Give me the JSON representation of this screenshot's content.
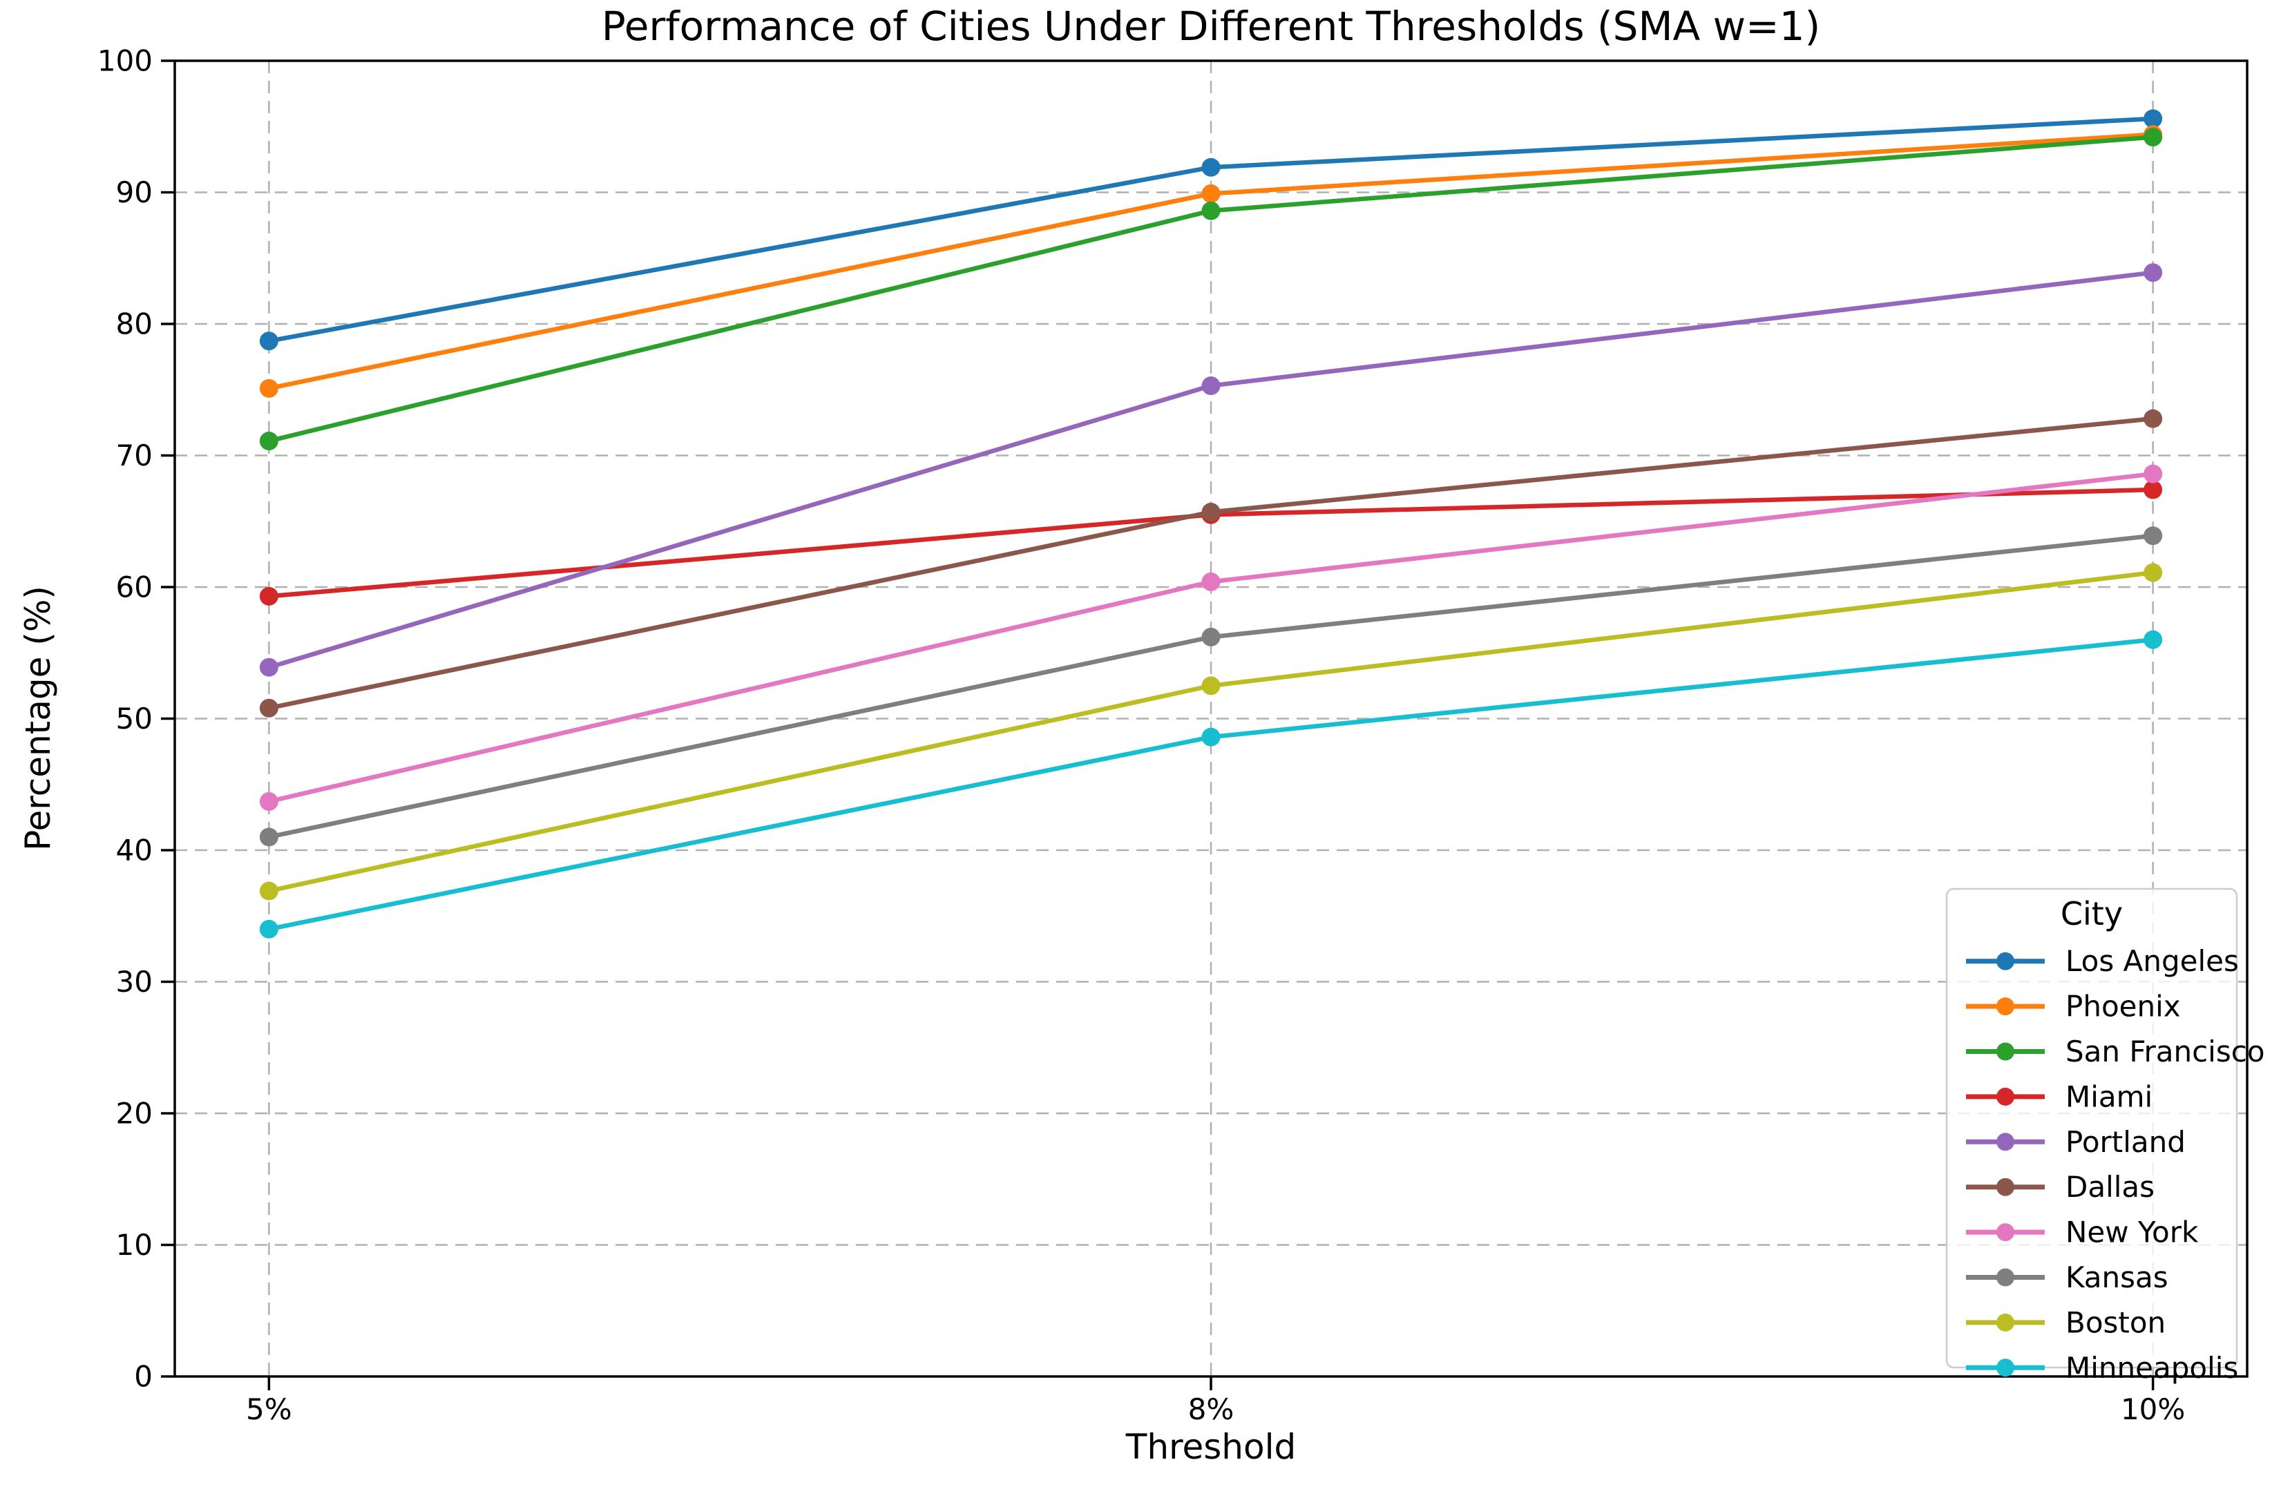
{
  "chart_data": {
    "type": "line",
    "title": "Performance of Cities Under Different Thresholds (SMA w=1)",
    "xlabel": "Threshold",
    "ylabel": "Percentage (%)",
    "legend_title": "City",
    "legend_position": "lower right",
    "grid": "dashed",
    "ylim": [
      0,
      100
    ],
    "yticks": [
      0,
      10,
      20,
      30,
      40,
      50,
      60,
      70,
      80,
      90,
      100
    ],
    "categories": [
      "5%",
      "8%",
      "10%"
    ],
    "series": [
      {
        "name": "Los Angeles",
        "color": "#1f77b4",
        "values": [
          78.7,
          91.9,
          95.6
        ]
      },
      {
        "name": "Phoenix",
        "color": "#ff7f0e",
        "values": [
          75.1,
          89.9,
          94.4
        ]
      },
      {
        "name": "San Francisco",
        "color": "#2ca02c",
        "values": [
          71.1,
          88.6,
          94.2
        ]
      },
      {
        "name": "Miami",
        "color": "#d62728",
        "values": [
          59.3,
          65.5,
          67.4
        ]
      },
      {
        "name": "Portland",
        "color": "#9467bd",
        "values": [
          53.9,
          75.3,
          83.9
        ]
      },
      {
        "name": "Dallas",
        "color": "#8c564b",
        "values": [
          50.8,
          65.7,
          72.8
        ]
      },
      {
        "name": "New York",
        "color": "#e377c2",
        "values": [
          43.7,
          60.4,
          68.6
        ]
      },
      {
        "name": "Kansas",
        "color": "#7f7f7f",
        "values": [
          41.0,
          56.2,
          63.9
        ]
      },
      {
        "name": "Boston",
        "color": "#bcbd22",
        "values": [
          36.9,
          52.5,
          61.1
        ]
      },
      {
        "name": "Minneapolis",
        "color": "#17becf",
        "values": [
          34.0,
          48.6,
          56.0
        ]
      }
    ],
    "style": {
      "grid_color": "#b0b0b0",
      "spine_color": "#000000",
      "background": "#ffffff",
      "legend_border": "#cccccc"
    }
  }
}
